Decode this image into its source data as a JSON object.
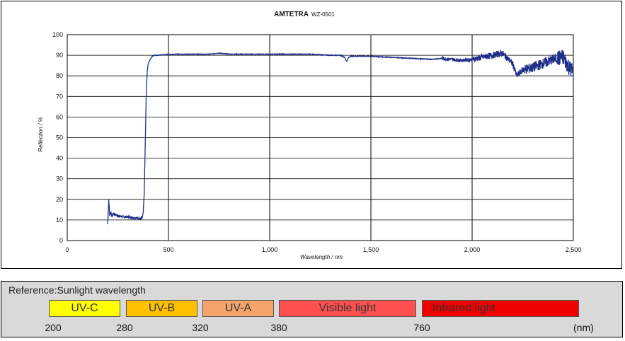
{
  "chart_data": {
    "type": "line",
    "title": "AMTETRA",
    "title_model": "WZ-0501",
    "xlabel": "Wavelength / nm",
    "ylabel": "Reflection / %",
    "xlim": [
      0,
      2500
    ],
    "ylim": [
      0,
      100
    ],
    "xticks": [
      0,
      500,
      1000,
      1500,
      2000,
      2500
    ],
    "xtick_labels": [
      "0",
      "500",
      "1,000",
      "1,500",
      "2,000",
      "2,500"
    ],
    "yticks": [
      0,
      10,
      20,
      30,
      40,
      50,
      60,
      70,
      80,
      90,
      100
    ],
    "grid": "vertical and horizontal",
    "line_color": "#1f2f8a",
    "series": [
      {
        "x": [
          200,
          205,
          210,
          215,
          220,
          230,
          250,
          280,
          300,
          330,
          350,
          360,
          370,
          375,
          380,
          385,
          390,
          395,
          400,
          410,
          420,
          430,
          450,
          500,
          600,
          700,
          750,
          800,
          900,
          1000,
          1100,
          1200,
          1300,
          1350,
          1370,
          1380,
          1390,
          1400,
          1500,
          1600,
          1700,
          1800,
          1850,
          1900,
          1950,
          2000,
          2050,
          2100,
          2150,
          2180,
          2200,
          2220,
          2250,
          2300,
          2350,
          2400,
          2450,
          2480,
          2500
        ],
        "y": [
          8,
          20,
          12,
          14,
          12,
          13,
          12,
          11.5,
          11.5,
          11,
          11,
          10.5,
          11,
          13,
          22,
          45,
          70,
          82,
          86,
          88,
          89.5,
          90,
          90,
          90.5,
          90.5,
          90.5,
          91,
          90.5,
          90.5,
          90.5,
          90.5,
          90.5,
          90,
          90,
          89,
          87,
          89,
          89.5,
          89.5,
          89,
          88.5,
          88,
          88.5,
          88,
          87.5,
          88,
          89,
          90,
          91,
          88,
          86,
          80,
          83,
          84,
          86,
          88,
          89,
          84,
          82
        ]
      }
    ]
  },
  "reference": {
    "title": "Reference:Sunlight wavelength",
    "unit": "(nm)",
    "bands": [
      {
        "label": "UV-C",
        "color": "#ffff00"
      },
      {
        "label": "UV-B",
        "color": "#ffc000"
      },
      {
        "label": "UV-A",
        "color": "#f4a46b"
      },
      {
        "label": "Visible light",
        "color": "#ff5050"
      },
      {
        "label": "Infrared light",
        "color": "#f00000"
      }
    ],
    "bounds": [
      "200",
      "280",
      "320",
      "380",
      "760"
    ]
  }
}
